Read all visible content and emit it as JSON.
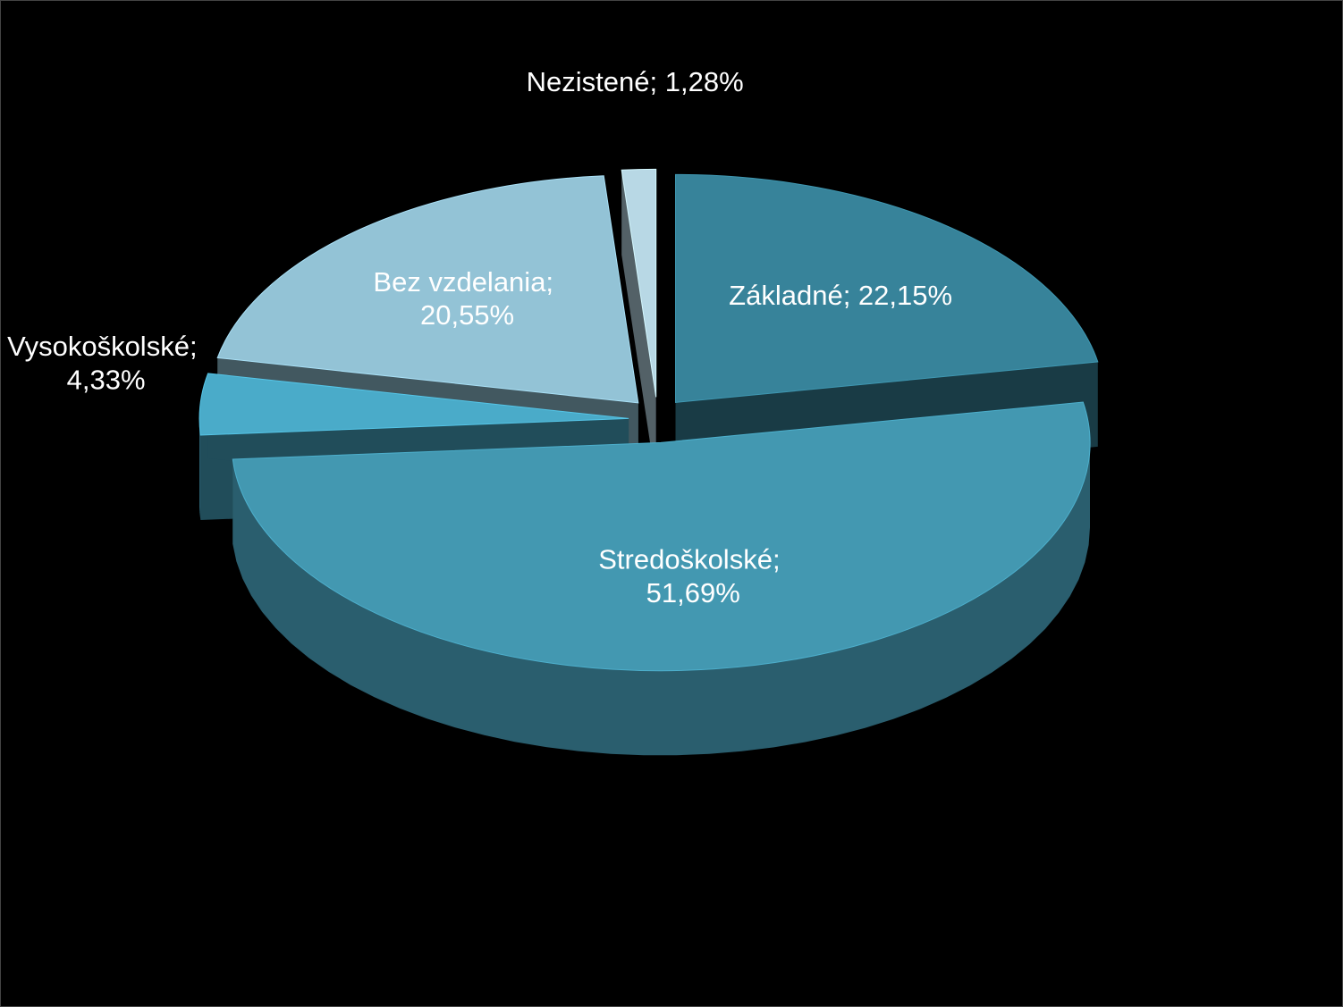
{
  "chart_data": {
    "type": "pie",
    "values": [
      22.15,
      51.69,
      4.33,
      20.55,
      1.28
    ],
    "value_labels": [
      "Základné; 22,15%",
      "Stredoškolské; 51,69%",
      "Vysokoškolské; 4,33%",
      "Bez vzdelania; 20,55%",
      "Nezistené; 1,28%"
    ],
    "colors": [
      "#37839a",
      "#4398b1",
      "#4aabc9",
      "#93c3d6",
      "#b8d8e5"
    ]
  }
}
